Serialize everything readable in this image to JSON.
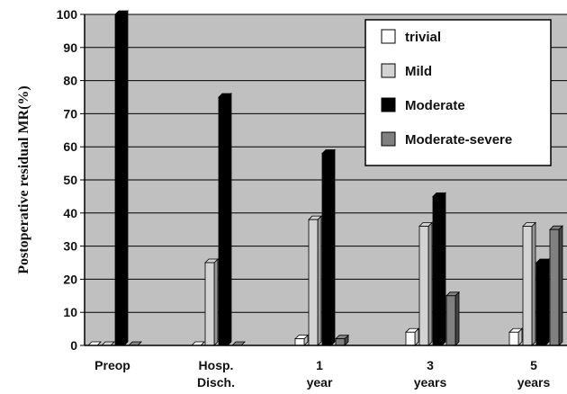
{
  "chart_data": {
    "type": "bar",
    "ylabel": "Postoperative residual MR(%)",
    "ylim": [
      0,
      100
    ],
    "y_ticks": [
      "0",
      "10",
      "20",
      "30",
      "40",
      "50",
      "60",
      "70",
      "80",
      "90",
      "100"
    ],
    "grid": true,
    "plot_background": "#c0c0c0",
    "legend_position": "top-right",
    "categories": [
      [
        "Preop"
      ],
      [
        "Hosp.",
        "Disch."
      ],
      [
        "1",
        "year"
      ],
      [
        "3",
        "years"
      ],
      [
        "5",
        "years"
      ]
    ],
    "series": [
      {
        "name": "trivial",
        "color": "#ffffff",
        "values": [
          0,
          0,
          2,
          4,
          4
        ]
      },
      {
        "name": "Mild",
        "color": "#d3d3d3",
        "values": [
          0,
          25,
          38,
          36,
          36
        ]
      },
      {
        "name": "Moderate",
        "color": "#000000",
        "values": [
          100,
          75,
          58,
          45,
          25
        ]
      },
      {
        "name": "Moderate-severe",
        "color": "#808080",
        "values": [
          0,
          0,
          2,
          15,
          35
        ]
      }
    ]
  }
}
